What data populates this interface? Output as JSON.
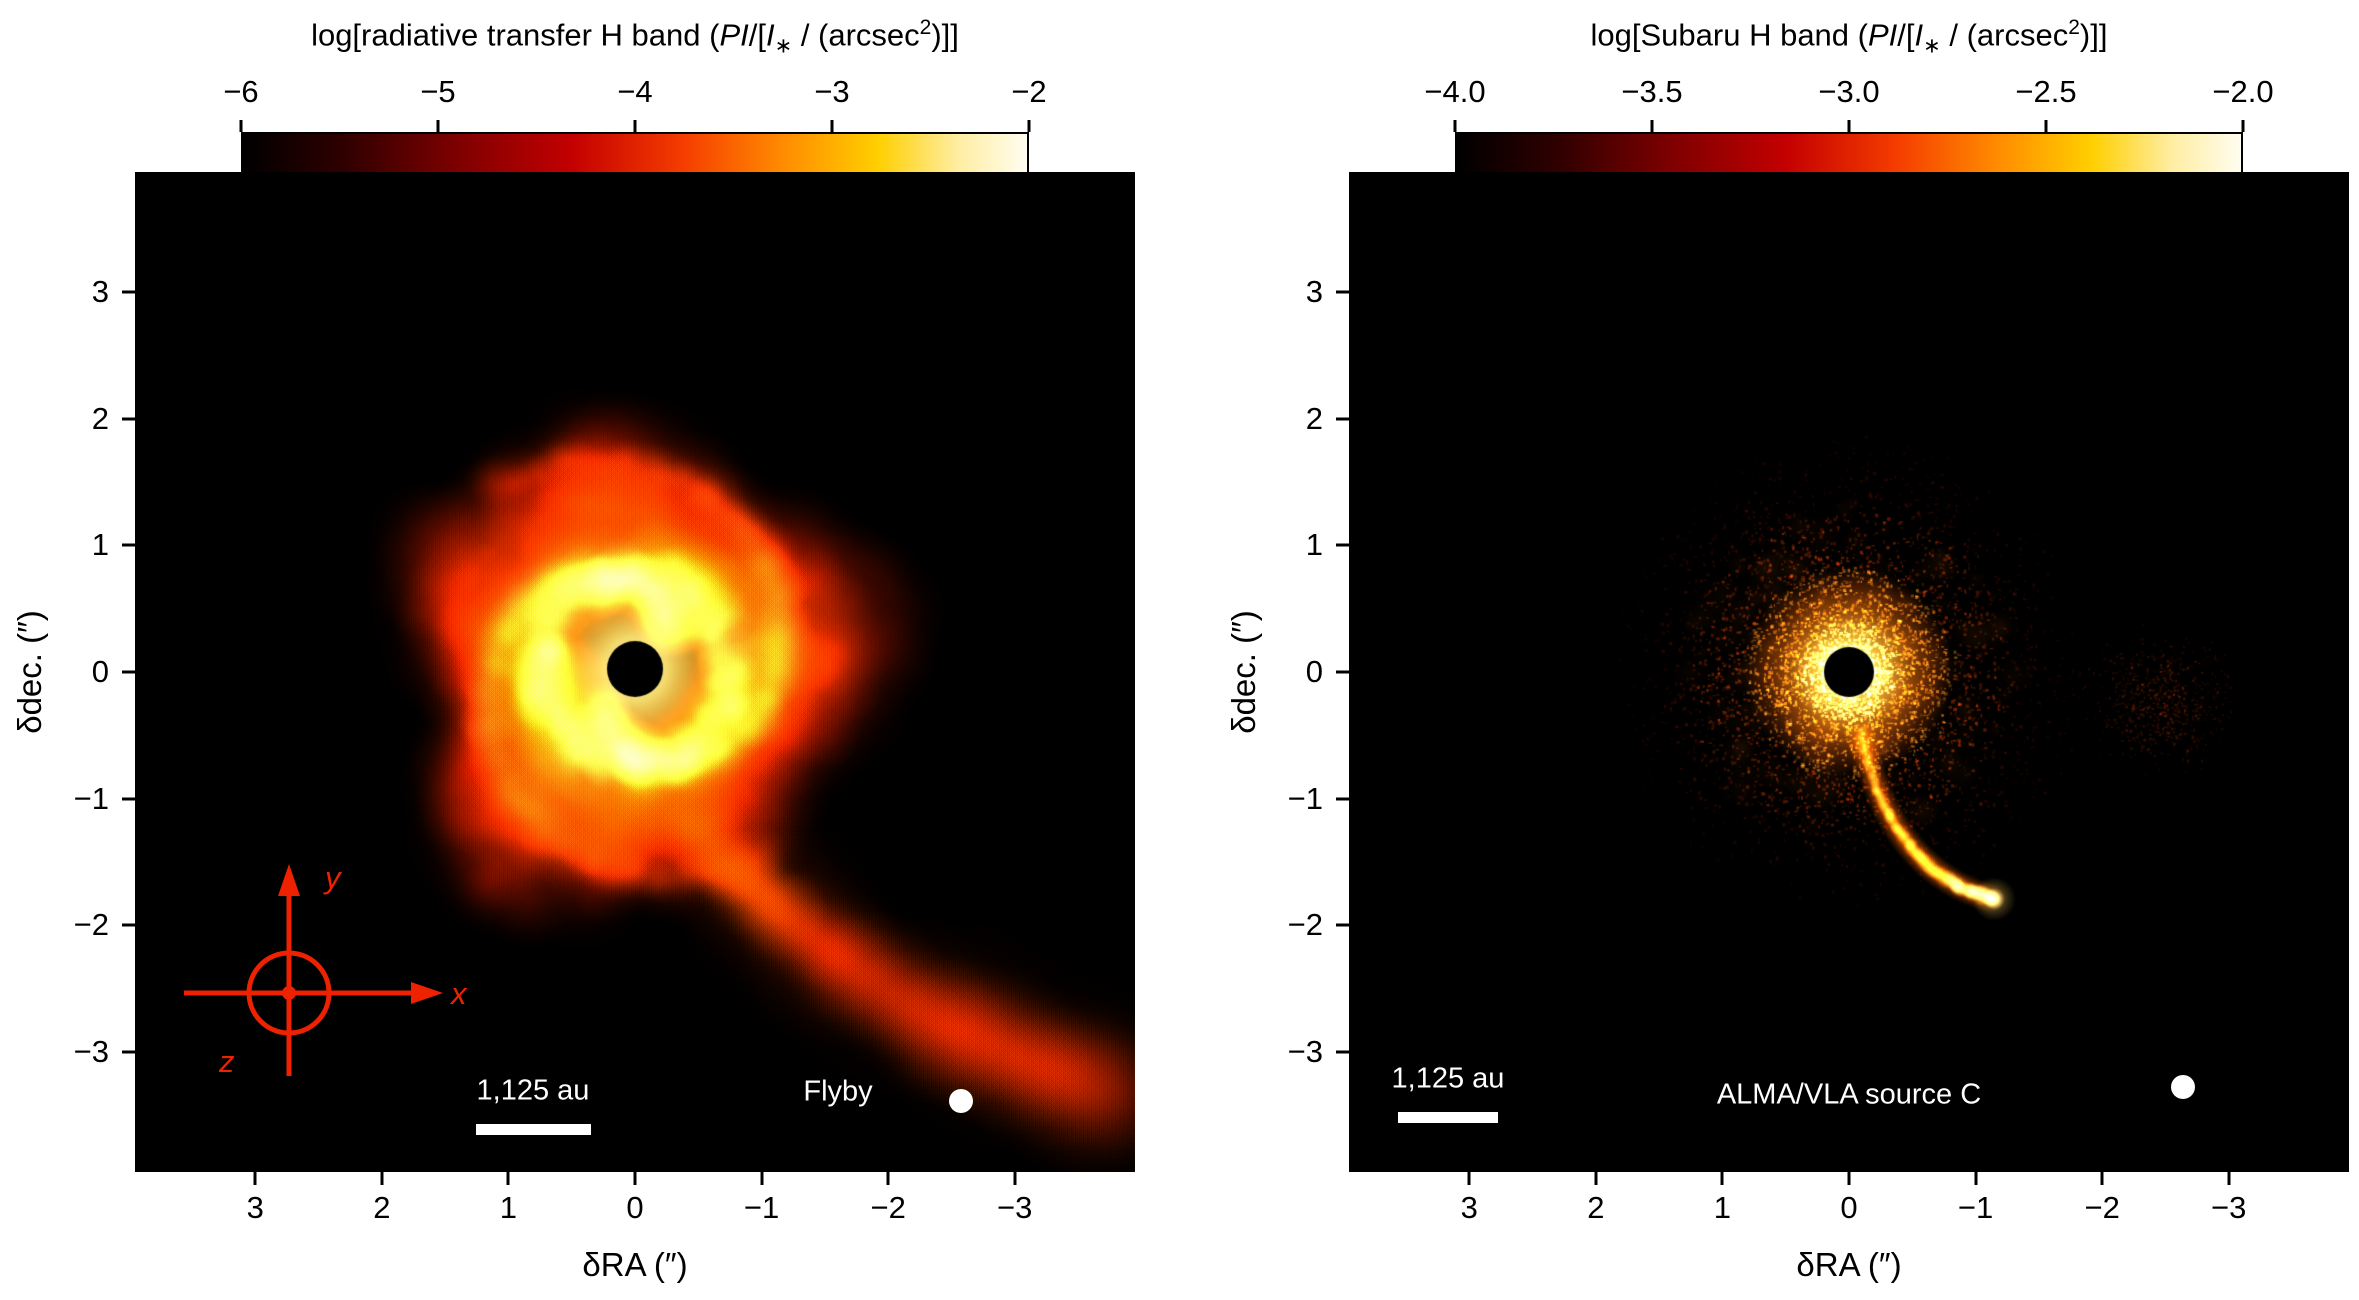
{
  "colors": {
    "background": "#ffffff",
    "plot_background": "#000000",
    "annotation_text": "#ffffff",
    "axes_indicator": "#ee2200",
    "colormap": [
      "#000000",
      "#300000",
      "#7c0000",
      "#c40000",
      "#f53c00",
      "#ff8c00",
      "#ffcf00",
      "#ffeda0",
      "#fffdf0"
    ]
  },
  "panels": [
    {
      "name": "radiative-transfer-model",
      "colorbar": {
        "title_segments": {
          "pre": "log[radiative transfer H band (",
          "pi": "PI",
          "mid1": "/[",
          "i": "I",
          "star": "∗",
          "mid2": " / (arcsec",
          "sup": "2",
          "post": ")]]"
        },
        "ticks": [
          "−6",
          "−5",
          "−4",
          "−3",
          "−2"
        ]
      },
      "x_ticks": [
        "3",
        "2",
        "1",
        "0",
        "−1",
        "−2",
        "−3"
      ],
      "y_ticks": [
        "3",
        "2",
        "1",
        "0",
        "−1",
        "−2",
        "−3"
      ],
      "xlabel": "δRA (″)",
      "ylabel": "δdec. (″)",
      "scalebar": "1,125 au",
      "source_label": "Flyby",
      "axes_indicator": {
        "x": "x",
        "y": "y",
        "z": "z"
      }
    },
    {
      "name": "subaru-observation",
      "colorbar": {
        "title_segments": {
          "pre": "log[Subaru H band (",
          "pi": "PI",
          "mid1": "/[",
          "i": "I",
          "star": "∗",
          "mid2": " / (arcsec",
          "sup": "2",
          "post": ")]]"
        },
        "ticks": [
          "−4.0",
          "−3.5",
          "−3.0",
          "−2.5",
          "−2.0"
        ]
      },
      "x_ticks": [
        "3",
        "2",
        "1",
        "0",
        "−1",
        "−2",
        "−3"
      ],
      "y_ticks": [
        "3",
        "2",
        "1",
        "0",
        "−1",
        "−2",
        "−3"
      ],
      "xlabel": "δRA (″)",
      "ylabel": "δdec. (″)",
      "scalebar": "1,125 au",
      "source_label": "ALMA/VLA source C"
    }
  ],
  "chart_data": [
    {
      "type": "heatmap",
      "title": "log[radiative transfer H band (PI/[I∗ / (arcsec²)]]",
      "xlabel": "δRA (″)",
      "ylabel": "δdec. (″)",
      "x_ticks": [
        3,
        2,
        1,
        0,
        -1,
        -2,
        -3
      ],
      "y_ticks": [
        3,
        2,
        1,
        0,
        -1,
        -2,
        -3
      ],
      "xlim": [
        3.95,
        -3.95
      ],
      "ylim": [
        -3.95,
        3.95
      ],
      "colorbar": {
        "range": [
          -6,
          -2
        ],
        "ticks": [
          -6,
          -5,
          -4,
          -3,
          -2
        ],
        "colormap": "heat (black-red-orange-yellow-white)",
        "orientation": "horizontal-top"
      },
      "features": [
        "bright spiral disk centered on the star at (0,0), bright core out to ~0.8″, disk out to ~1.8″",
        "broad tidal tail extending from the disk toward lower right, reaching about (−3.8″, −3.4″)",
        "central star masked by black circle of radius ~0.2″"
      ],
      "annotations": [
        "Flyby",
        "1,125 au scale bar",
        "red x/y/z orientation axes with circled dot (z out of page)",
        "white beam marker dot at (−2.6″, −3.4″)"
      ]
    },
    {
      "type": "heatmap",
      "title": "log[Subaru H band (PI/[I∗ / (arcsec²)]]",
      "xlabel": "δRA (″)",
      "ylabel": "δdec. (″)",
      "x_ticks": [
        3,
        2,
        1,
        0,
        -1,
        -2,
        -3
      ],
      "y_ticks": [
        3,
        2,
        1,
        0,
        -1,
        -2,
        -3
      ],
      "xlim": [
        3.95,
        -3.95
      ],
      "ylim": [
        -3.95,
        3.95
      ],
      "colorbar": {
        "range": [
          -4.0,
          -2.0
        ],
        "ticks": [
          -4.0,
          -3.5,
          -3.0,
          -2.5,
          -2.0
        ],
        "colormap": "heat (black-red-orange-yellow-white)",
        "orientation": "horizontal-top"
      },
      "features": [
        "speckled polarized-intensity halo centered on the star, radius ~1.3″ with bright yellow core",
        "narrow streamer from the core ending in a bright knot near (−1.1″, −1.8″)",
        "faint diffuse emission patch near (−2.5″, −0.2″)",
        "central star masked by black circle of radius ~0.18″"
      ],
      "annotations": [
        "ALMA/VLA source C",
        "1,125 au scale bar",
        "white beam marker dot at (−2.6″, −3.3″)"
      ]
    }
  ]
}
